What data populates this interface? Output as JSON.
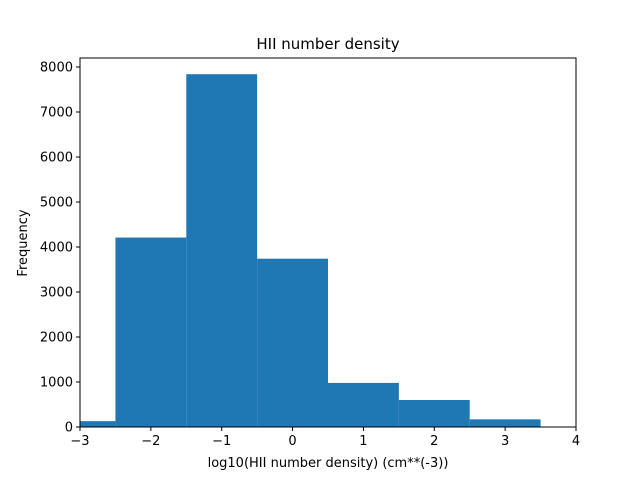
{
  "chart_data": {
    "type": "bar",
    "title": "HII number density",
    "xlabel": "log10(HII number density) (cm**(-3))",
    "ylabel": "Frequency",
    "xlim": [
      -3,
      4
    ],
    "ylim": [
      0,
      8200
    ],
    "bar_color": "#1f77b4",
    "bins": [
      {
        "x0": -3.0,
        "x1": -2.5,
        "value": 130
      },
      {
        "x0": -2.5,
        "x1": -1.5,
        "value": 4210
      },
      {
        "x0": -1.5,
        "x1": -0.5,
        "value": 7840
      },
      {
        "x0": -0.5,
        "x1": 0.5,
        "value": 3740
      },
      {
        "x0": 0.5,
        "x1": 1.5,
        "value": 980
      },
      {
        "x0": 1.5,
        "x1": 2.5,
        "value": 600
      },
      {
        "x0": 2.5,
        "x1": 3.5,
        "value": 170
      }
    ],
    "x_ticks": [
      {
        "value": -3,
        "label": "−3"
      },
      {
        "value": -2,
        "label": "−2"
      },
      {
        "value": -1,
        "label": "−1"
      },
      {
        "value": 0,
        "label": "0"
      },
      {
        "value": 1,
        "label": "1"
      },
      {
        "value": 2,
        "label": "2"
      },
      {
        "value": 3,
        "label": "3"
      },
      {
        "value": 4,
        "label": "4"
      }
    ],
    "y_ticks": [
      {
        "value": 0,
        "label": "0"
      },
      {
        "value": 1000,
        "label": "1000"
      },
      {
        "value": 2000,
        "label": "2000"
      },
      {
        "value": 3000,
        "label": "3000"
      },
      {
        "value": 4000,
        "label": "4000"
      },
      {
        "value": 5000,
        "label": "5000"
      },
      {
        "value": 6000,
        "label": "6000"
      },
      {
        "value": 7000,
        "label": "7000"
      },
      {
        "value": 8000,
        "label": "8000"
      }
    ],
    "grid": false,
    "legend": "none"
  }
}
